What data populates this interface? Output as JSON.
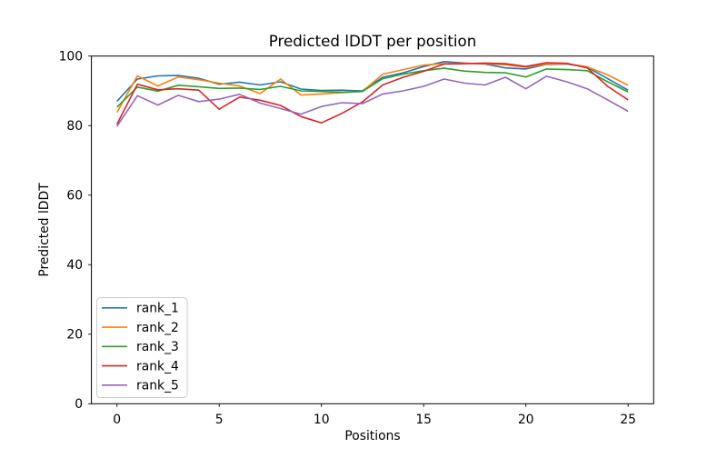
{
  "figure": {
    "background": "#ffffff"
  },
  "chart_data": {
    "type": "line",
    "title": "Predicted lDDT per position",
    "xlabel": "Positions",
    "ylabel": "Predicted lDDT",
    "xlim": [
      -1.25,
      26.25
    ],
    "ylim": [
      0,
      100
    ],
    "x_ticks": [
      0,
      5,
      10,
      15,
      20,
      25
    ],
    "y_ticks": [
      0,
      20,
      40,
      60,
      80,
      100
    ],
    "grid": false,
    "legend_position": "lower left",
    "axis_color": "#000000",
    "line_width": 1.6,
    "x": [
      0,
      1,
      2,
      3,
      4,
      5,
      6,
      7,
      8,
      9,
      10,
      11,
      12,
      13,
      14,
      15,
      16,
      17,
      18,
      19,
      20,
      21,
      22,
      23,
      24,
      25
    ],
    "series": [
      {
        "name": "rank_1",
        "color": "#1f77b4",
        "values": [
          87.0,
          93.4,
          94.3,
          94.4,
          93.6,
          91.9,
          92.5,
          91.7,
          92.6,
          90.5,
          90.1,
          90.2,
          90.0,
          93.9,
          95.2,
          97.0,
          98.4,
          98.0,
          97.7,
          96.6,
          96.3,
          97.6,
          97.7,
          96.8,
          93.5,
          90.2
        ]
      },
      {
        "name": "rank_2",
        "color": "#ff7f0e",
        "values": [
          83.8,
          94.3,
          91.4,
          94.0,
          93.2,
          92.2,
          91.4,
          89.2,
          93.4,
          88.8,
          89.1,
          89.5,
          89.8,
          94.8,
          96.1,
          97.4,
          97.8,
          97.9,
          97.8,
          97.5,
          96.8,
          97.7,
          97.8,
          96.9,
          94.6,
          91.6
        ]
      },
      {
        "name": "rank_3",
        "color": "#2ca02c",
        "values": [
          85.3,
          91.1,
          89.9,
          91.6,
          91.2,
          90.7,
          90.8,
          90.4,
          91.3,
          90.0,
          89.8,
          89.6,
          89.8,
          93.5,
          94.8,
          95.8,
          96.5,
          95.7,
          95.3,
          95.2,
          94.0,
          96.3,
          96.1,
          95.8,
          92.6,
          89.7
        ]
      },
      {
        "name": "rank_4",
        "color": "#d62728",
        "values": [
          80.4,
          91.9,
          90.3,
          90.6,
          90.2,
          84.7,
          88.2,
          87.3,
          85.8,
          82.6,
          80.8,
          83.5,
          86.8,
          91.7,
          93.9,
          95.6,
          97.7,
          97.8,
          98.0,
          97.8,
          97.0,
          98.1,
          97.9,
          96.6,
          91.3,
          87.4
        ]
      },
      {
        "name": "rank_5",
        "color": "#9467bd",
        "values": [
          79.8,
          88.6,
          85.9,
          88.7,
          86.9,
          87.6,
          89.0,
          86.5,
          84.9,
          83.3,
          85.5,
          86.6,
          86.3,
          89.1,
          90.0,
          91.3,
          93.4,
          92.2,
          91.7,
          93.9,
          90.6,
          94.2,
          92.6,
          90.6,
          87.4,
          84.1
        ]
      }
    ]
  }
}
